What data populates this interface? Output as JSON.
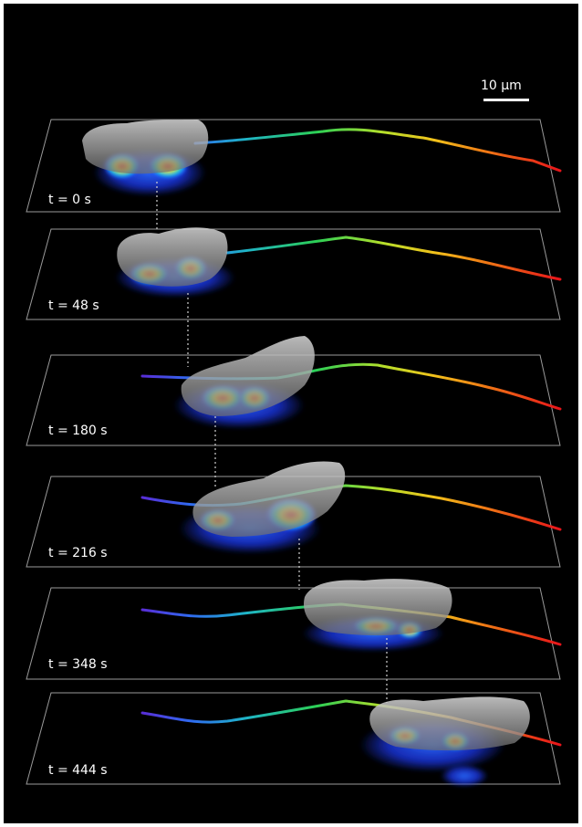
{
  "figure": {
    "scale_bar": {
      "label": "10 µm",
      "length_value": 10,
      "unit": "µm"
    },
    "frames": [
      {
        "label": "t = 0 s",
        "time_s": 0
      },
      {
        "label": "t = 48 s",
        "time_s": 48
      },
      {
        "label": "t = 180 s",
        "time_s": 180
      },
      {
        "label": "t = 216 s",
        "time_s": 216
      },
      {
        "label": "t = 348 s",
        "time_s": 348
      },
      {
        "label": "t = 444 s",
        "time_s": 444
      }
    ],
    "colors": {
      "background": "#000000",
      "plane_outline": "#9a9a9a",
      "track_start": "#5a2bd6",
      "track_mid": "#22c36a",
      "track_late": "#f0d020",
      "track_end": "#e8141a",
      "cell_surface": "#b9b9b9",
      "heatmap_low": "#1e3cff",
      "heatmap_high": "#ff1a1a"
    }
  }
}
